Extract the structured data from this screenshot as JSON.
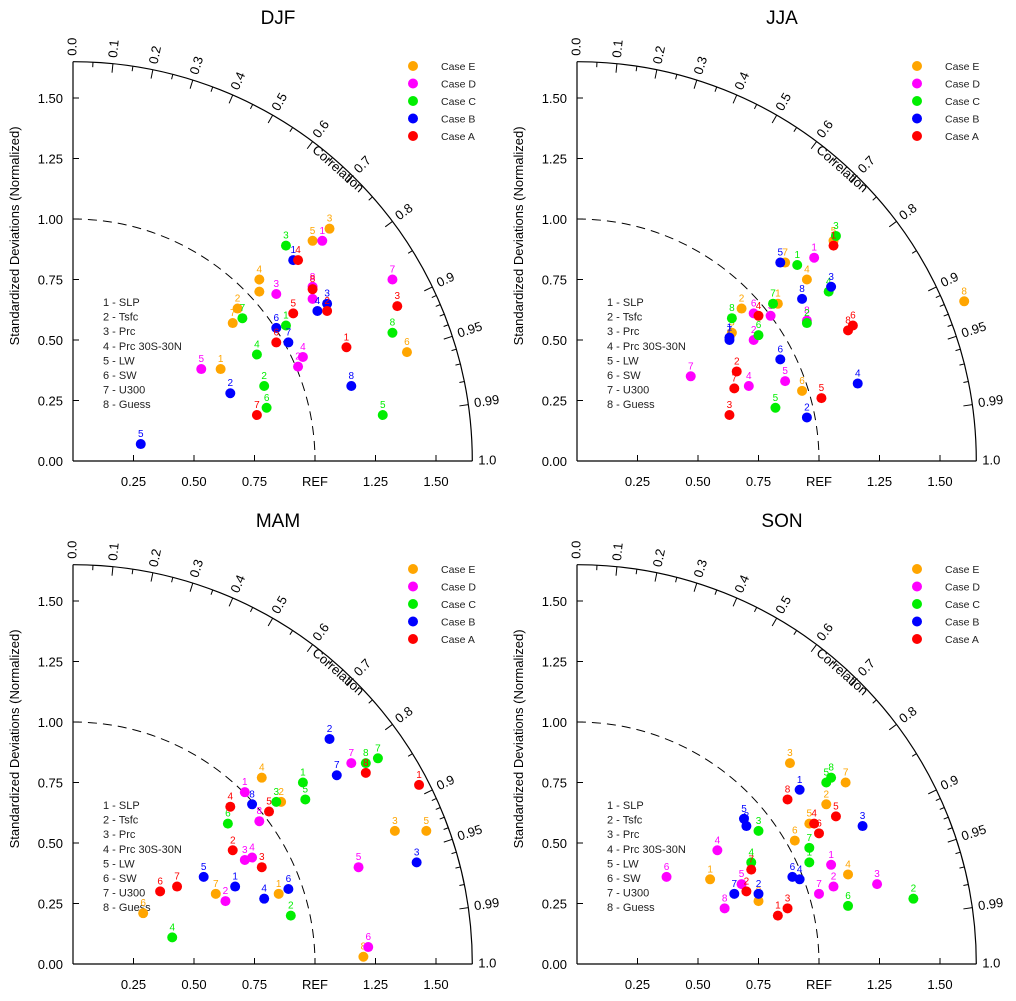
{
  "chart_data": {
    "type": "scatter",
    "subtype": "taylor-diagram",
    "shared": {
      "ylabel": "Standardized Deviations (Normalized)",
      "arc_label": "Correlation",
      "ref_label": "REF",
      "std_range": [
        0,
        1.65
      ],
      "std_ticks": [
        "0.00",
        "0.25",
        "0.50",
        "0.75",
        "1.00",
        "1.25",
        "1.50"
      ],
      "x_tick_labels": [
        "0.25",
        "0.50",
        "0.75",
        "REF",
        "1.25",
        "1.50"
      ],
      "corr_labels": [
        "0.0",
        "0.1",
        "0.2",
        "0.3",
        "0.4",
        "0.5",
        "0.6",
        "0.7",
        "0.8",
        "0.9",
        "0.95",
        "0.99",
        "1.0"
      ],
      "ref_arc_std": 1.0,
      "variables": [
        "1 - SLP",
        "2 - Tsfc",
        "3 - Prc",
        "4 - Prc 30S-30N",
        "5 - LW",
        "6 - SW",
        "7 - U300",
        "8 - Guess"
      ],
      "legend_position": "top-right",
      "cases": [
        {
          "name": "Case E",
          "color": "#ffa500"
        },
        {
          "name": "Case D",
          "color": "#ff00ff"
        },
        {
          "name": "Case C",
          "color": "#00ee00"
        },
        {
          "name": "Case B",
          "color": "#0000ff"
        },
        {
          "name": "Case A",
          "color": "#ff0000"
        }
      ]
    },
    "panels": [
      {
        "title": "DJF",
        "series": [
          {
            "name": "Case E",
            "points": [
              [
                0.61,
                0.38
              ],
              [
                0.68,
                0.63
              ],
              [
                1.06,
                0.96
              ],
              [
                0.77,
                0.75
              ],
              [
                0.99,
                0.91
              ],
              [
                1.38,
                0.45
              ],
              [
                0.66,
                0.57
              ],
              [
                0.77,
                0.7
              ]
            ]
          },
          {
            "name": "Case D",
            "points": [
              [
                1.03,
                0.91
              ],
              [
                0.93,
                0.39
              ],
              [
                0.84,
                0.69
              ],
              [
                0.95,
                0.43
              ],
              [
                0.53,
                0.38
              ],
              [
                0.99,
                0.67
              ],
              [
                1.32,
                0.75
              ],
              [
                0.99,
                0.72
              ]
            ]
          },
          {
            "name": "Case C",
            "points": [
              [
                0.88,
                0.56
              ],
              [
                0.79,
                0.31
              ],
              [
                0.88,
                0.89
              ],
              [
                0.76,
                0.44
              ],
              [
                1.28,
                0.19
              ],
              [
                0.8,
                0.22
              ],
              [
                0.7,
                0.59
              ],
              [
                1.32,
                0.53
              ]
            ]
          },
          {
            "name": "Case B",
            "points": [
              [
                0.91,
                0.83
              ],
              [
                0.65,
                0.28
              ],
              [
                1.05,
                0.65
              ],
              [
                1.01,
                0.62
              ],
              [
                0.28,
                0.07
              ],
              [
                0.84,
                0.55
              ],
              [
                0.89,
                0.49
              ],
              [
                1.15,
                0.31
              ]
            ]
          },
          {
            "name": "Case A",
            "points": [
              [
                1.13,
                0.47
              ],
              [
                1.05,
                0.62
              ],
              [
                1.34,
                0.64
              ],
              [
                0.93,
                0.83
              ],
              [
                0.91,
                0.61
              ],
              [
                0.84,
                0.49
              ],
              [
                0.76,
                0.19
              ],
              [
                0.99,
                0.71
              ]
            ]
          }
        ]
      },
      {
        "title": "JJA",
        "series": [
          {
            "name": "Case E",
            "points": [
              [
                0.83,
                0.65
              ],
              [
                0.68,
                0.63
              ],
              [
                0.64,
                0.53
              ],
              [
                0.95,
                0.75
              ],
              [
                1.06,
                0.91
              ],
              [
                0.93,
                0.29
              ],
              [
                0.86,
                0.82
              ],
              [
                1.6,
                0.66
              ]
            ]
          },
          {
            "name": "Case D",
            "points": [
              [
                0.98,
                0.84
              ],
              [
                0.73,
                0.5
              ],
              [
                0.8,
                0.6
              ],
              [
                0.71,
                0.31
              ],
              [
                0.86,
                0.33
              ],
              [
                0.73,
                0.61
              ],
              [
                0.47,
                0.35
              ],
              [
                0.95,
                0.58
              ]
            ]
          },
          {
            "name": "Case C",
            "points": [
              [
                0.91,
                0.81
              ],
              [
                0.95,
                0.57
              ],
              [
                1.07,
                0.93
              ],
              [
                1.04,
                0.7
              ],
              [
                0.82,
                0.22
              ],
              [
                0.75,
                0.52
              ],
              [
                0.81,
                0.65
              ],
              [
                0.64,
                0.59
              ]
            ]
          },
          {
            "name": "Case B",
            "points": [
              [
                0.63,
                0.51
              ],
              [
                0.95,
                0.18
              ],
              [
                1.05,
                0.72
              ],
              [
                1.16,
                0.32
              ],
              [
                0.84,
                0.82
              ],
              [
                0.84,
                0.42
              ],
              [
                0.63,
                0.5
              ],
              [
                0.93,
                0.67
              ]
            ]
          },
          {
            "name": "Case A",
            "points": [
              [
                1.06,
                0.89
              ],
              [
                0.66,
                0.37
              ],
              [
                0.63,
                0.19
              ],
              [
                0.75,
                0.6
              ],
              [
                1.01,
                0.26
              ],
              [
                1.14,
                0.56
              ],
              [
                0.65,
                0.3
              ],
              [
                1.12,
                0.54
              ]
            ]
          }
        ]
      },
      {
        "title": "MAM",
        "series": [
          {
            "name": "Case E",
            "points": [
              [
                0.85,
                0.29
              ],
              [
                0.86,
                0.67
              ],
              [
                1.33,
                0.55
              ],
              [
                0.78,
                0.77
              ],
              [
                1.46,
                0.55
              ],
              [
                0.29,
                0.21
              ],
              [
                0.59,
                0.29
              ],
              [
                1.2,
                0.03
              ]
            ]
          },
          {
            "name": "Case D",
            "points": [
              [
                0.71,
                0.71
              ],
              [
                0.63,
                0.26
              ],
              [
                0.71,
                0.43
              ],
              [
                0.74,
                0.44
              ],
              [
                1.18,
                0.4
              ],
              [
                1.22,
                0.07
              ],
              [
                1.15,
                0.83
              ],
              [
                0.77,
                0.59
              ]
            ]
          },
          {
            "name": "Case C",
            "points": [
              [
                0.95,
                0.75
              ],
              [
                0.9,
                0.2
              ],
              [
                0.84,
                0.67
              ],
              [
                0.41,
                0.11
              ],
              [
                0.96,
                0.68
              ],
              [
                0.64,
                0.58
              ],
              [
                1.26,
                0.85
              ],
              [
                1.21,
                0.83
              ]
            ]
          },
          {
            "name": "Case B",
            "points": [
              [
                0.67,
                0.32
              ],
              [
                1.06,
                0.93
              ],
              [
                1.42,
                0.42
              ],
              [
                0.79,
                0.27
              ],
              [
                0.54,
                0.36
              ],
              [
                0.89,
                0.31
              ],
              [
                1.09,
                0.78
              ],
              [
                0.74,
                0.66
              ]
            ]
          },
          {
            "name": "Case A",
            "points": [
              [
                1.43,
                0.74
              ],
              [
                0.66,
                0.47
              ],
              [
                0.78,
                0.4
              ],
              [
                0.65,
                0.65
              ],
              [
                0.81,
                0.63
              ],
              [
                0.36,
                0.3
              ],
              [
                0.43,
                0.32
              ],
              [
                1.21,
                0.79
              ]
            ]
          }
        ]
      },
      {
        "title": "SON",
        "series": [
          {
            "name": "Case E",
            "points": [
              [
                0.55,
                0.35
              ],
              [
                1.03,
                0.66
              ],
              [
                0.88,
                0.83
              ],
              [
                1.12,
                0.37
              ],
              [
                0.96,
                0.58
              ],
              [
                0.9,
                0.51
              ],
              [
                1.11,
                0.75
              ],
              [
                0.75,
                0.26
              ]
            ]
          },
          {
            "name": "Case D",
            "points": [
              [
                1.05,
                0.41
              ],
              [
                1.06,
                0.32
              ],
              [
                1.24,
                0.33
              ],
              [
                0.58,
                0.47
              ],
              [
                0.68,
                0.33
              ],
              [
                0.37,
                0.36
              ],
              [
                1.0,
                0.29
              ],
              [
                0.61,
                0.23
              ]
            ]
          },
          {
            "name": "Case C",
            "points": [
              [
                0.96,
                0.42
              ],
              [
                1.39,
                0.27
              ],
              [
                0.75,
                0.55
              ],
              [
                0.72,
                0.42
              ],
              [
                1.03,
                0.75
              ],
              [
                1.12,
                0.24
              ],
              [
                0.96,
                0.48
              ],
              [
                1.05,
                0.77
              ]
            ]
          },
          {
            "name": "Case B",
            "points": [
              [
                0.92,
                0.72
              ],
              [
                0.75,
                0.29
              ],
              [
                1.18,
                0.57
              ],
              [
                0.92,
                0.35
              ],
              [
                0.69,
                0.6
              ],
              [
                0.89,
                0.36
              ],
              [
                0.65,
                0.29
              ],
              [
                0.7,
                0.57
              ]
            ]
          },
          {
            "name": "Case A",
            "points": [
              [
                0.83,
                0.2
              ],
              [
                0.7,
                0.3
              ],
              [
                0.87,
                0.23
              ],
              [
                0.98,
                0.58
              ],
              [
                1.07,
                0.61
              ],
              [
                1.0,
                0.54
              ],
              [
                0.72,
                0.39
              ],
              [
                0.87,
                0.68
              ]
            ]
          }
        ]
      }
    ]
  }
}
